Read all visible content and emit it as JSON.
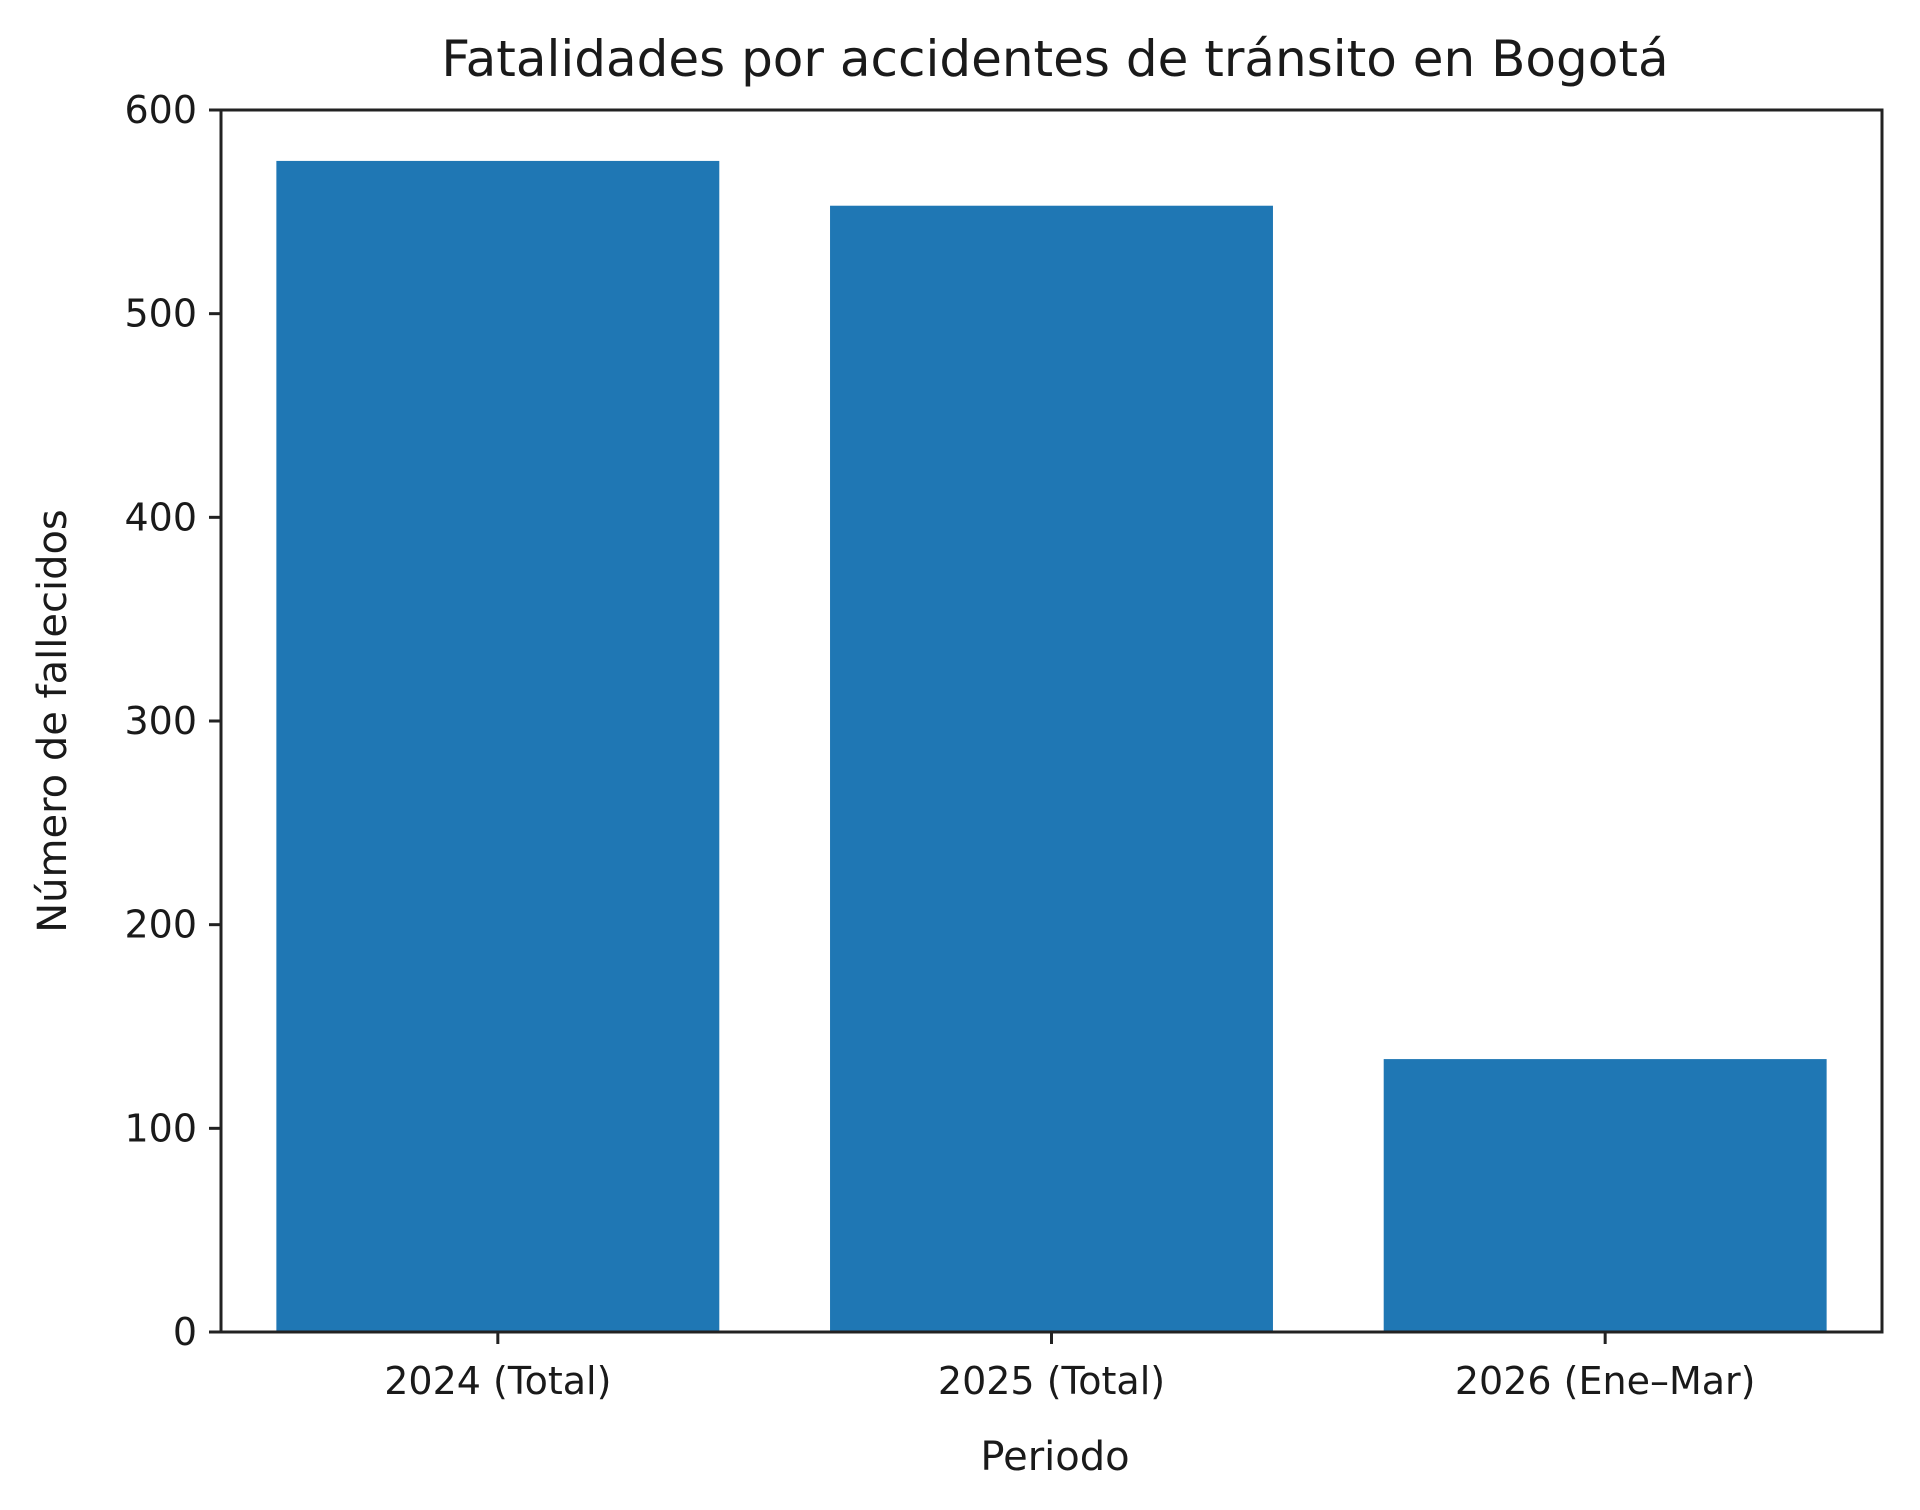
{
  "chart_data": {
    "type": "bar",
    "title": "Fatalidades por accidentes de tránsito en Bogotá",
    "xlabel": "Periodo",
    "ylabel": "Número de fallecidos",
    "categories": [
      "2024 (Total)",
      "2025 (Total)",
      "2026 (Ene–Mar)"
    ],
    "values": [
      575,
      553,
      134
    ],
    "ylim": [
      0,
      600
    ],
    "yticks": [
      "0",
      "100",
      "200",
      "300",
      "400",
      "500",
      "600"
    ],
    "grid": false,
    "legend": "none",
    "bar_color": "#1f77b4"
  }
}
